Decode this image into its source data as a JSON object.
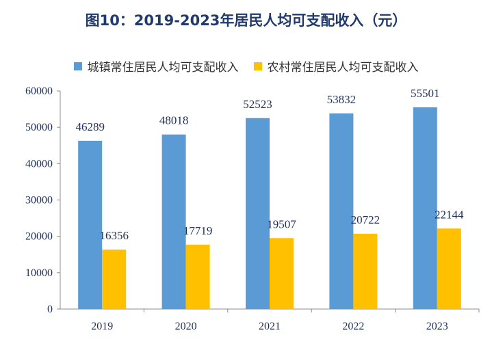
{
  "chart_data": {
    "type": "bar",
    "title": "图10：2019-2023年居民人均可支配收入（元）",
    "categories": [
      "2019",
      "2020",
      "2021",
      "2022",
      "2023"
    ],
    "series": [
      {
        "name": "城镇常住居民人均可支配收入",
        "color": "#5b9bd5",
        "values": [
          46289,
          48018,
          52523,
          53832,
          55501
        ]
      },
      {
        "name": "农村常住居民人均可支配收入",
        "color": "#ffc000",
        "values": [
          16356,
          17719,
          19507,
          20722,
          22144
        ]
      }
    ],
    "ylim": [
      0,
      60000
    ],
    "yticks": [
      0,
      10000,
      20000,
      30000,
      40000,
      50000,
      60000
    ],
    "grid": false,
    "legend_position": "top"
  }
}
